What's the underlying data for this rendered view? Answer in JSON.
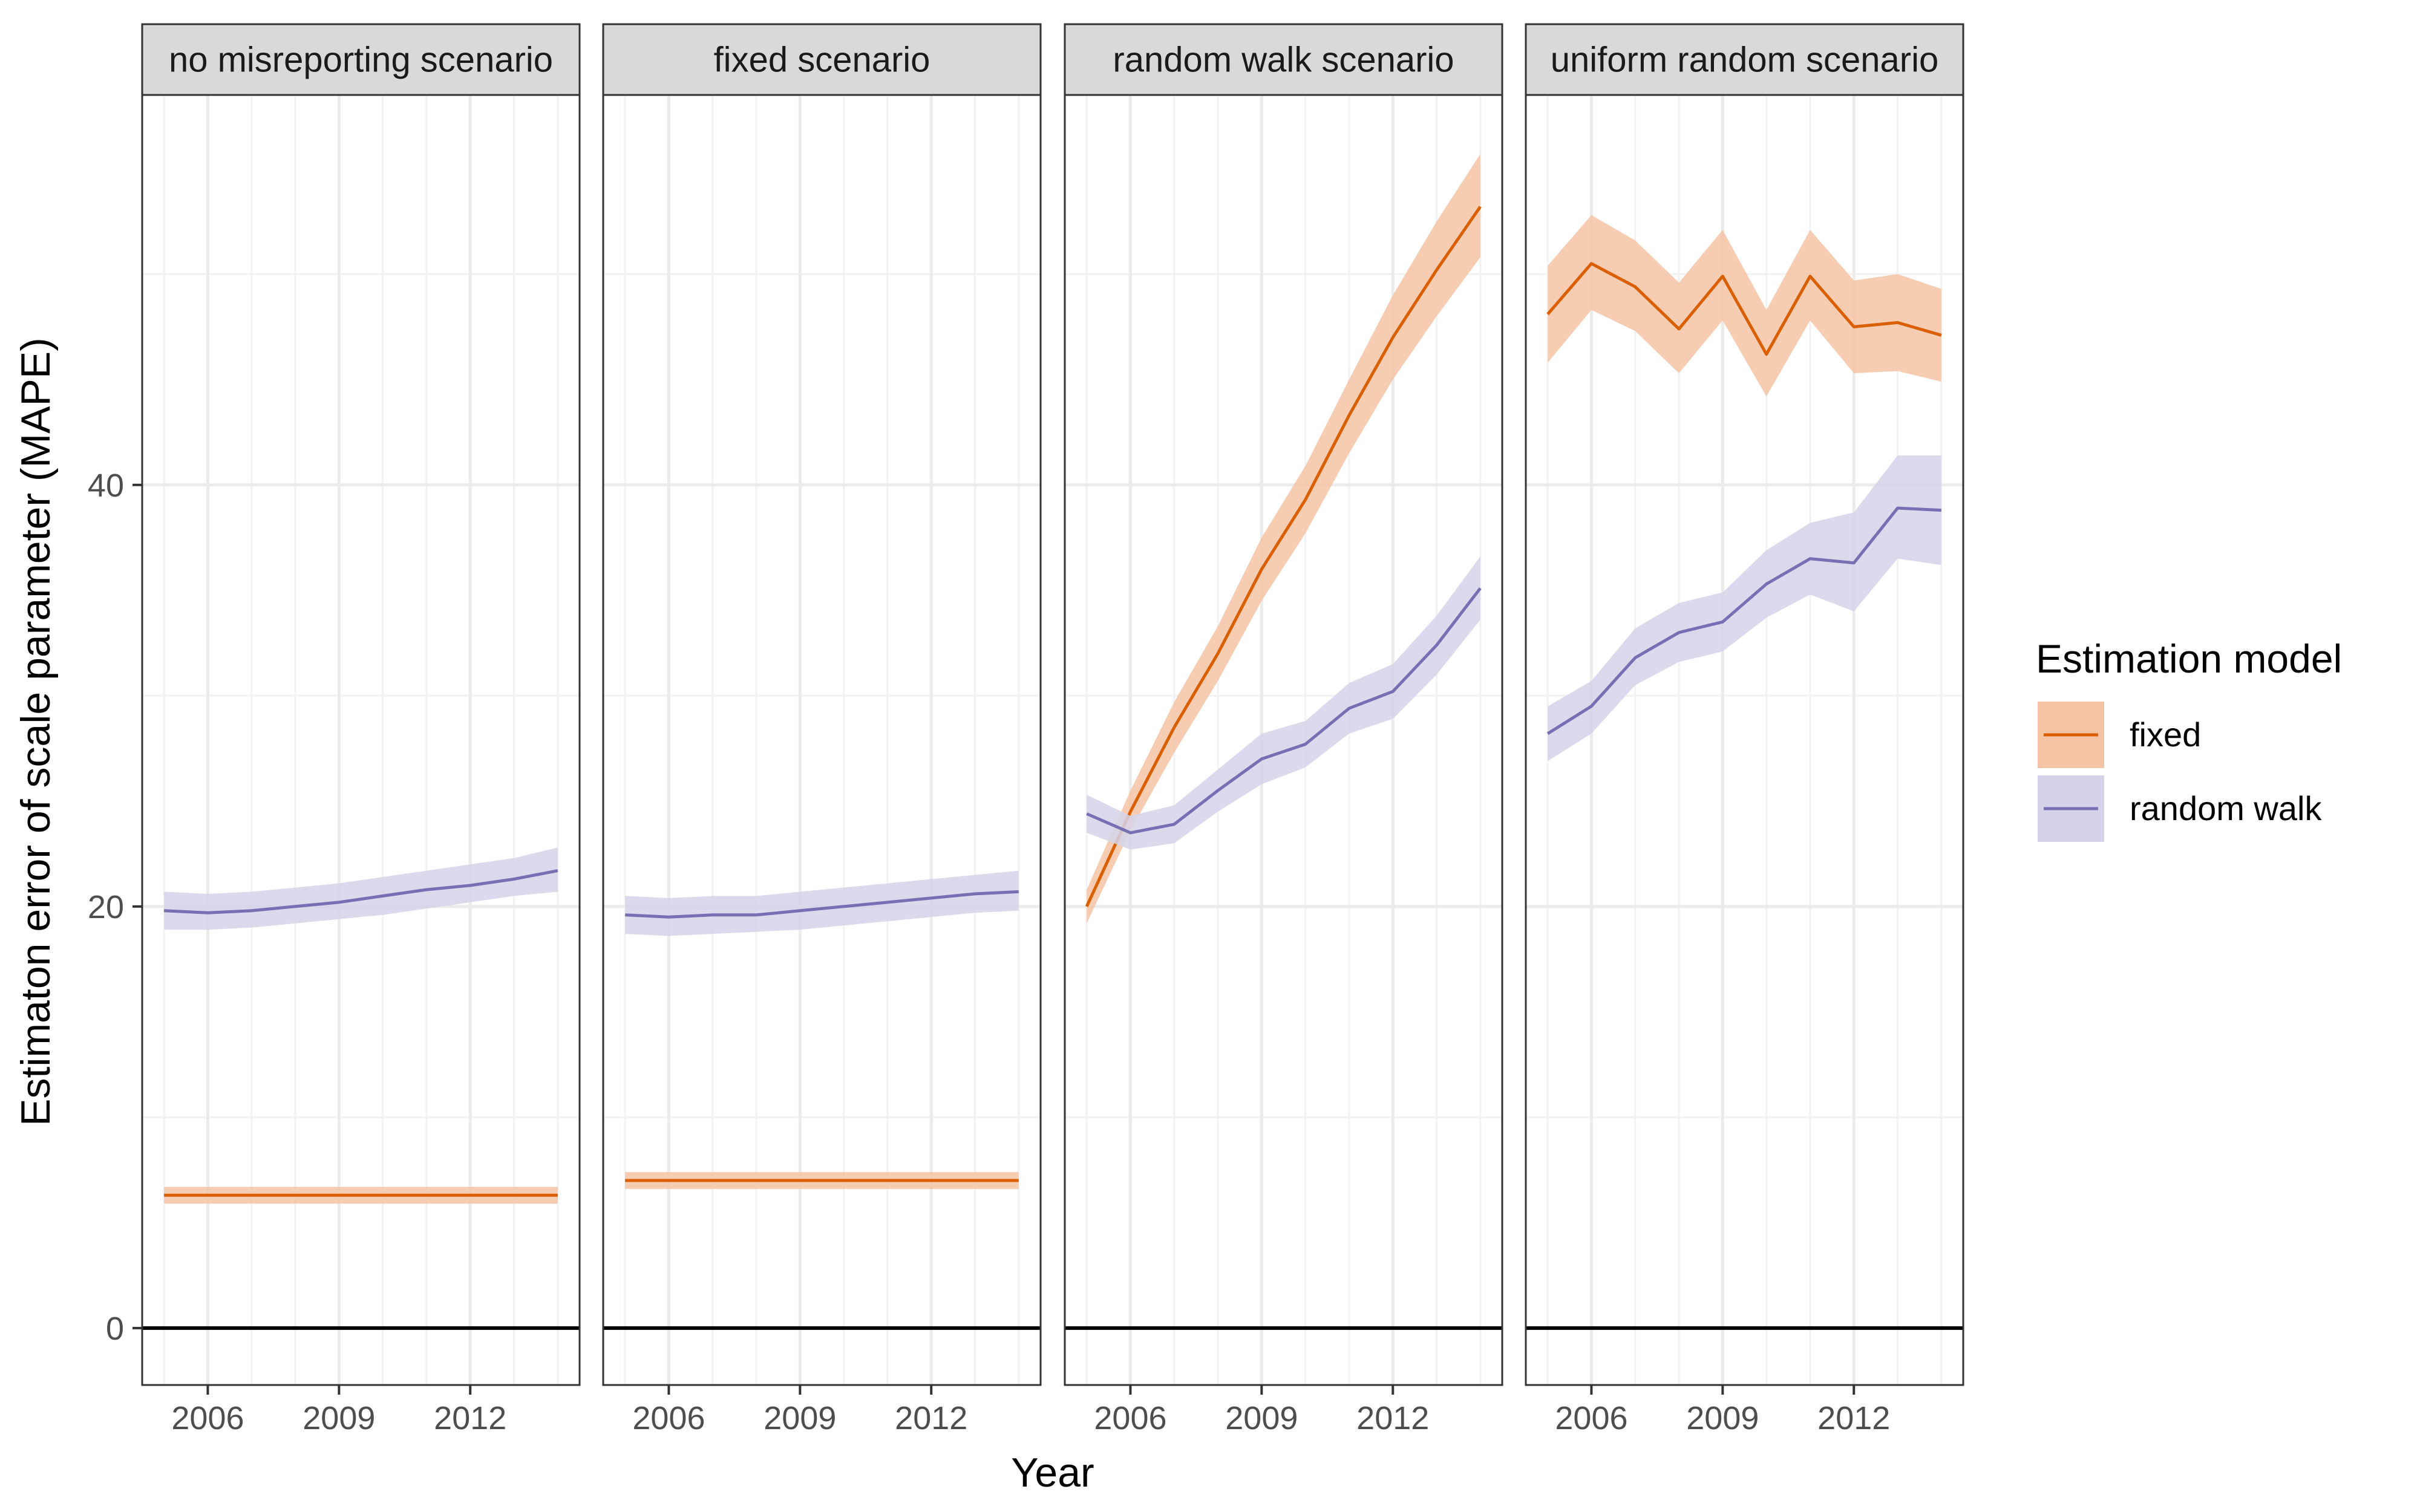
{
  "chart_data": {
    "type": "line",
    "ylabel": "Estimaton error of scale parameter (MAPE)",
    "xlabel": "Year",
    "xlim": [
      2004.5,
      2014.5
    ],
    "ylim": [
      -2.7,
      58.5
    ],
    "x_ticks": [
      2006,
      2009,
      2012
    ],
    "y_ticks": [
      0,
      20,
      40
    ],
    "hline": 0,
    "grid": true,
    "legend": {
      "title": "Estimation model",
      "placement": "right",
      "entries": [
        "fixed",
        "random walk"
      ]
    },
    "colors": {
      "fixed_line": "#d95f02",
      "fixed_band": "#f4c4a4",
      "rw_line": "#7570b3",
      "rw_band": "#d5d3ea"
    },
    "x": [
      2005,
      2006,
      2007,
      2008,
      2009,
      2010,
      2011,
      2012,
      2013,
      2014
    ],
    "panels": [
      {
        "title": "no misreporting scenario",
        "series": [
          {
            "name": "fixed",
            "values": [
              6.3,
              6.3,
              6.3,
              6.3,
              6.3,
              6.3,
              6.3,
              6.3,
              6.3,
              6.3
            ],
            "lower": [
              5.9,
              5.9,
              5.9,
              5.9,
              5.9,
              5.9,
              5.9,
              5.9,
              5.9,
              5.9
            ],
            "upper": [
              6.7,
              6.7,
              6.7,
              6.7,
              6.7,
              6.7,
              6.7,
              6.7,
              6.7,
              6.7
            ]
          },
          {
            "name": "random walk",
            "values": [
              19.8,
              19.7,
              19.8,
              20.0,
              20.2,
              20.5,
              20.8,
              21.0,
              21.3,
              21.7
            ],
            "lower": [
              18.9,
              18.9,
              19.0,
              19.2,
              19.4,
              19.6,
              19.9,
              20.2,
              20.5,
              20.7
            ],
            "upper": [
              20.7,
              20.6,
              20.7,
              20.9,
              21.1,
              21.4,
              21.7,
              22.0,
              22.3,
              22.8
            ]
          }
        ]
      },
      {
        "title": "fixed scenario",
        "series": [
          {
            "name": "fixed",
            "values": [
              7.0,
              7.0,
              7.0,
              7.0,
              7.0,
              7.0,
              7.0,
              7.0,
              7.0,
              7.0
            ],
            "lower": [
              6.6,
              6.6,
              6.6,
              6.6,
              6.6,
              6.6,
              6.6,
              6.6,
              6.6,
              6.6
            ],
            "upper": [
              7.4,
              7.4,
              7.4,
              7.4,
              7.4,
              7.4,
              7.4,
              7.4,
              7.4,
              7.4
            ]
          },
          {
            "name": "random walk",
            "values": [
              19.6,
              19.5,
              19.6,
              19.6,
              19.8,
              20.0,
              20.2,
              20.4,
              20.6,
              20.7
            ],
            "lower": [
              18.7,
              18.6,
              18.7,
              18.8,
              18.9,
              19.1,
              19.3,
              19.5,
              19.7,
              19.8
            ],
            "upper": [
              20.5,
              20.4,
              20.5,
              20.5,
              20.7,
              20.9,
              21.1,
              21.3,
              21.5,
              21.7
            ]
          }
        ]
      },
      {
        "title": "random walk scenario",
        "series": [
          {
            "name": "fixed",
            "values": [
              20.0,
              24.5,
              28.5,
              32.0,
              36.0,
              39.3,
              43.3,
              47.0,
              50.2,
              53.2
            ],
            "lower": [
              19.2,
              23.6,
              27.3,
              30.7,
              34.5,
              37.7,
              41.5,
              45.0,
              48.0,
              50.8
            ],
            "upper": [
              20.8,
              25.5,
              29.7,
              33.3,
              37.5,
              40.9,
              45.0,
              49.0,
              52.5,
              55.7
            ]
          },
          {
            "name": "random walk",
            "values": [
              24.4,
              23.5,
              23.9,
              25.5,
              27.0,
              27.7,
              29.4,
              30.2,
              32.4,
              35.1
            ],
            "lower": [
              23.5,
              22.7,
              23.0,
              24.5,
              25.8,
              26.6,
              28.2,
              28.9,
              31.0,
              33.6
            ],
            "upper": [
              25.3,
              24.3,
              24.8,
              26.5,
              28.2,
              28.8,
              30.6,
              31.5,
              33.8,
              36.6
            ]
          }
        ]
      },
      {
        "title": "uniform random scenario",
        "series": [
          {
            "name": "fixed",
            "values": [
              48.1,
              50.5,
              49.4,
              47.4,
              49.9,
              46.2,
              49.9,
              47.5,
              47.7,
              47.1
            ],
            "lower": [
              45.8,
              48.3,
              47.3,
              45.3,
              47.8,
              44.2,
              47.8,
              45.3,
              45.4,
              44.9
            ],
            "upper": [
              50.4,
              52.8,
              51.6,
              49.6,
              52.1,
              48.3,
              52.1,
              49.7,
              50.0,
              49.3
            ]
          },
          {
            "name": "random walk",
            "values": [
              28.2,
              29.5,
              31.8,
              33.0,
              33.5,
              35.3,
              36.5,
              36.3,
              38.9,
              38.8
            ],
            "lower": [
              26.9,
              28.2,
              30.5,
              31.6,
              32.1,
              33.7,
              34.8,
              34.0,
              36.5,
              36.2
            ],
            "upper": [
              29.5,
              30.7,
              33.2,
              34.4,
              34.9,
              36.9,
              38.2,
              38.7,
              41.4,
              41.4
            ]
          }
        ]
      }
    ]
  }
}
